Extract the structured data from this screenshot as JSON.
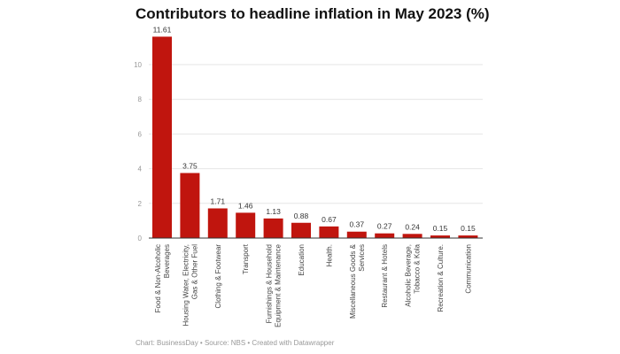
{
  "chart_data": {
    "type": "bar",
    "title": "Contributors to headline inflation in May 2023 (%)",
    "xlabel": "",
    "ylabel": "",
    "ylim": [
      0,
      12
    ],
    "yticks": [
      0,
      2,
      4,
      6,
      8,
      10
    ],
    "grid": true,
    "bar_color": "#c0150e",
    "categories": [
      [
        "Food & Non-Alcoholic",
        "Beverages"
      ],
      [
        "Housing Water, Electricity,",
        "Gas & Other Fuel"
      ],
      [
        "Clothing & Footwear"
      ],
      [
        "Transport"
      ],
      [
        "Furnishings & Household",
        "Equipment & Maintenance"
      ],
      [
        "Education"
      ],
      [
        "Health."
      ],
      [
        "Miscellaneous Goods &",
        "Services"
      ],
      [
        "Restaurant & Hotels"
      ],
      [
        "Alcoholic Beverage,",
        "Tobacco & Kola"
      ],
      [
        "Recreation & Culture."
      ],
      [
        "Communication"
      ]
    ],
    "values": [
      11.61,
      3.75,
      1.71,
      1.46,
      1.13,
      0.88,
      0.67,
      0.37,
      0.27,
      0.24,
      0.15,
      0.15
    ]
  },
  "footer": "Chart: BusinessDay • Source: NBS • Created with Datawrapper"
}
